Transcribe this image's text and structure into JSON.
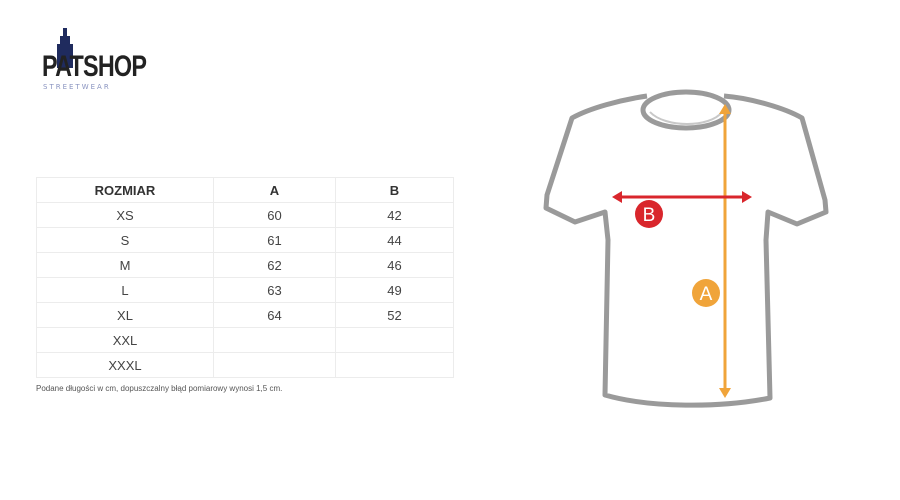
{
  "logo": {
    "name": "PATSHOP",
    "tagline": "STREETWEAR"
  },
  "table": {
    "headers": [
      "ROZMIAR",
      "A",
      "B"
    ],
    "rows": [
      [
        "XS",
        "60",
        "42"
      ],
      [
        "S",
        "61",
        "44"
      ],
      [
        "M",
        "62",
        "46"
      ],
      [
        "L",
        "63",
        "49"
      ],
      [
        "XL",
        "64",
        "52"
      ],
      [
        "XXL",
        "",
        ""
      ],
      [
        "XXXL",
        "",
        ""
      ]
    ]
  },
  "note": "Podane długości w cm, dopuszczalny błąd pomiarowy wynosi 1,5 cm.",
  "diagram": {
    "label_a": "A",
    "label_b": "B",
    "color_a": "#f0a43a",
    "color_b": "#d9262c",
    "outline": "#9a9a9a"
  }
}
